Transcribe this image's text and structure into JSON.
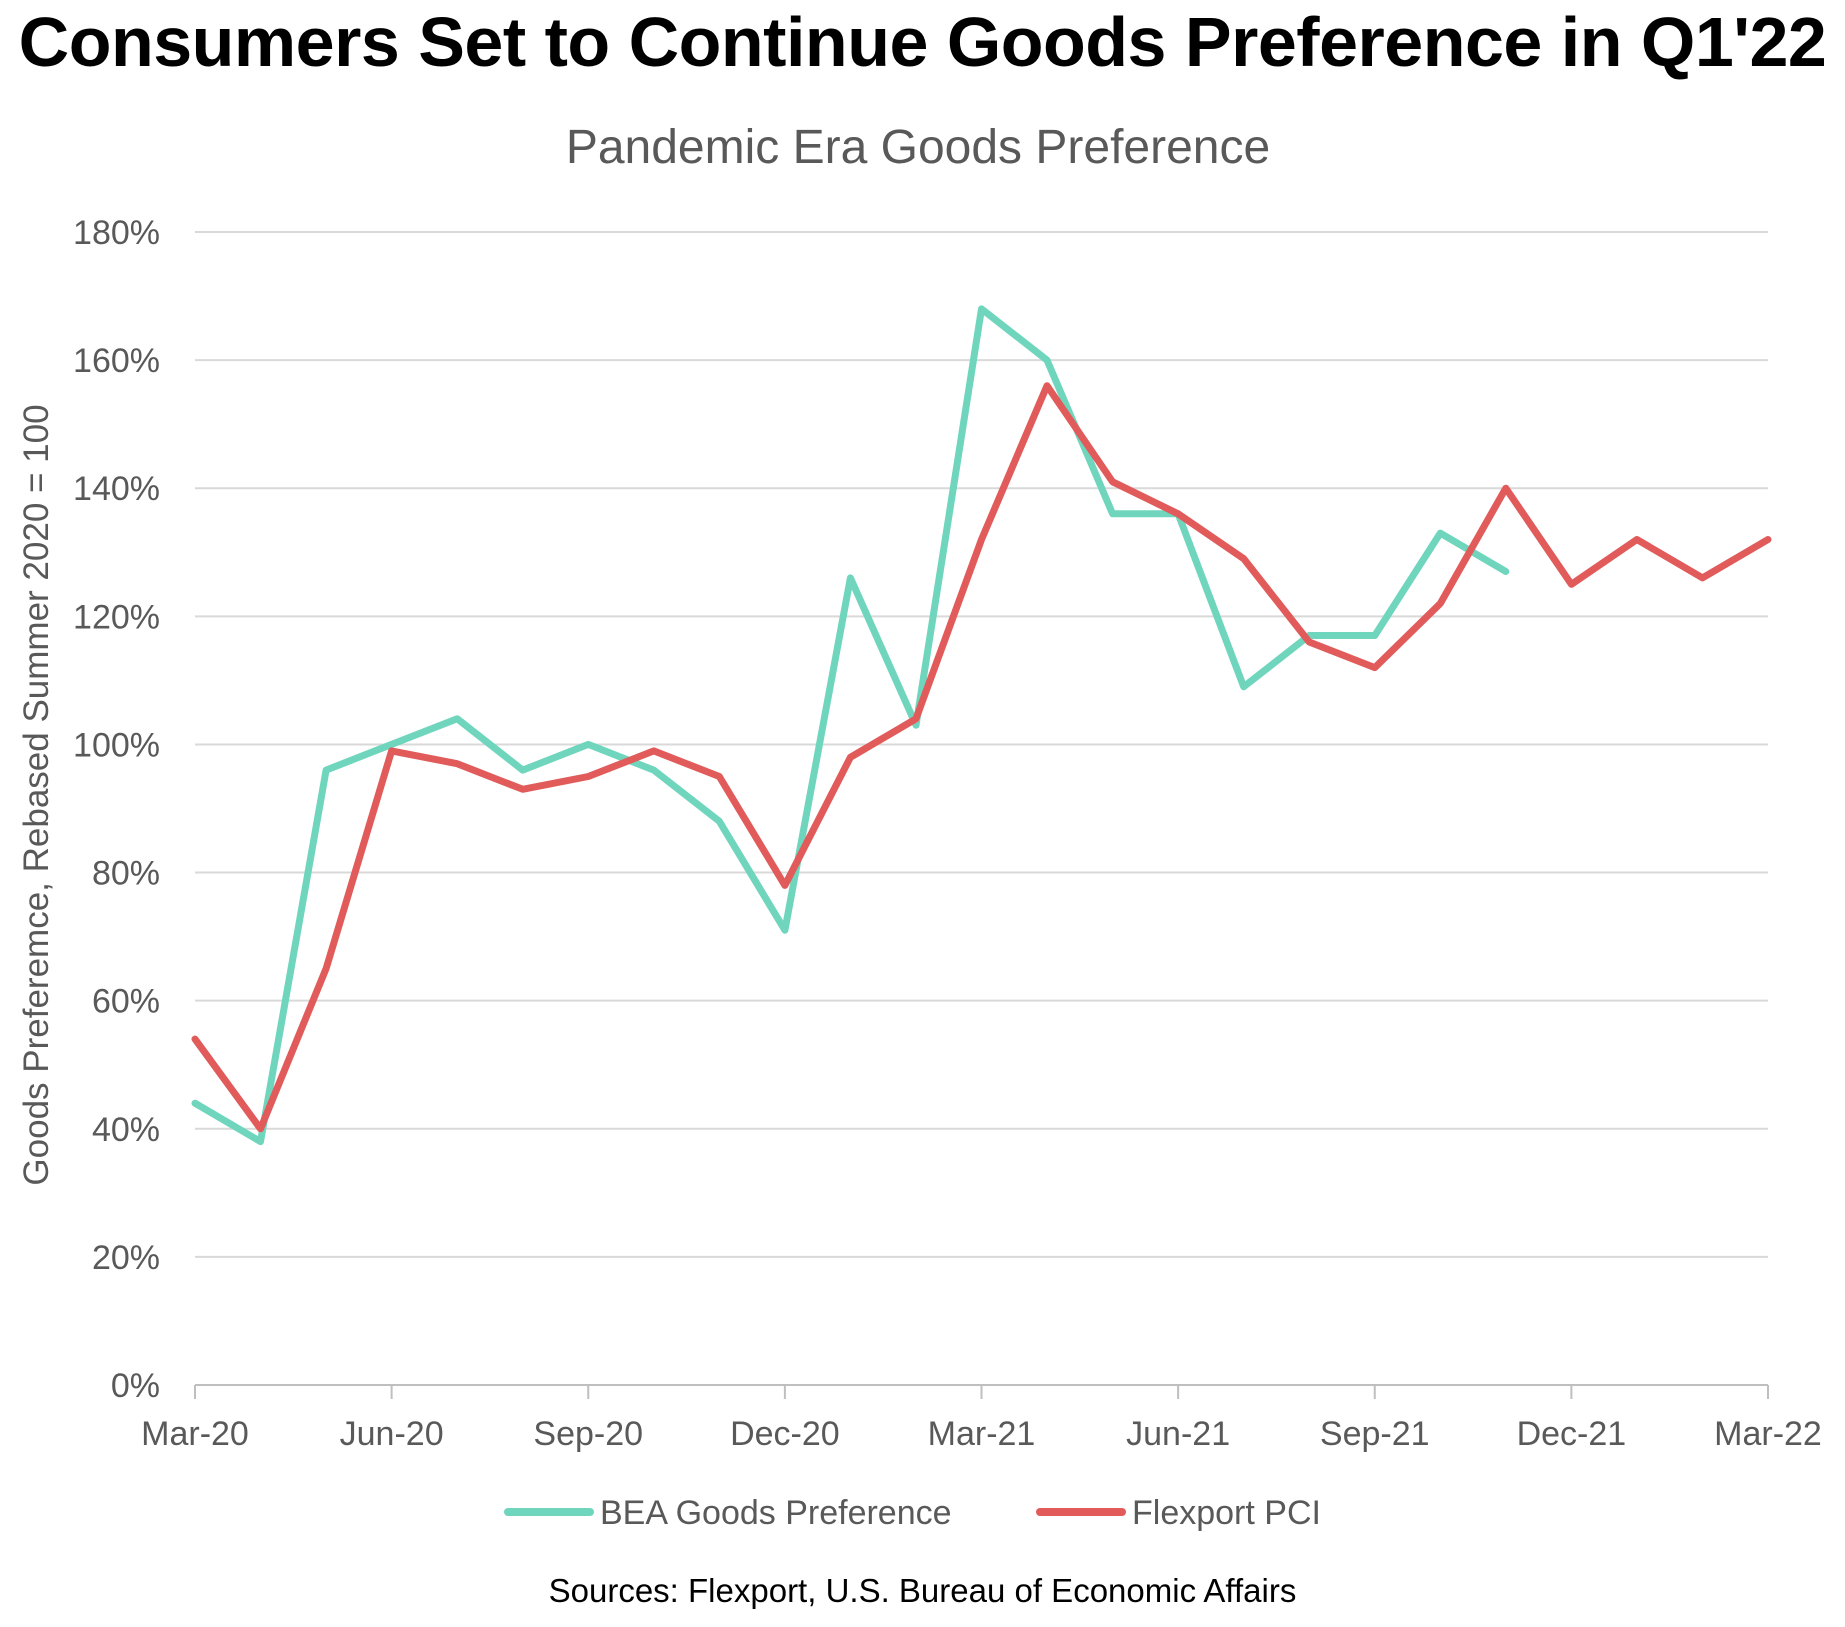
{
  "headline": "Consumers Set to Continue Goods Preference in Q1'22",
  "source": "Sources: Flexport, U.S. Bureau of Economic Affairs",
  "chart_data": {
    "type": "line",
    "title": "Pandemic Era Goods Preference",
    "xlabel": "",
    "ylabel": "Goods Preferemce, Rebased Summer 2020 = 100",
    "ylim": [
      0,
      180
    ],
    "yticks": [
      0,
      20,
      40,
      60,
      80,
      100,
      120,
      140,
      160,
      180
    ],
    "ytick_labels": [
      "0%",
      "20%",
      "40%",
      "60%",
      "80%",
      "100%",
      "120%",
      "140%",
      "160%",
      "180%"
    ],
    "x": [
      "Mar-20",
      "Apr-20",
      "May-20",
      "Jun-20",
      "Jul-20",
      "Aug-20",
      "Sep-20",
      "Oct-20",
      "Nov-20",
      "Dec-20",
      "Jan-21",
      "Feb-21",
      "Mar-21",
      "Apr-21",
      "May-21",
      "Jun-21",
      "Jul-21",
      "Aug-21",
      "Sep-21",
      "Oct-21",
      "Nov-21",
      "Dec-21",
      "Jan-22",
      "Feb-22",
      "Mar-22"
    ],
    "xtick_labels": [
      "Mar-20",
      "Jun-20",
      "Sep-20",
      "Dec-20",
      "Mar-21",
      "Jun-21",
      "Sep-21",
      "Dec-21",
      "Mar-22"
    ],
    "grid": true,
    "legend_position": "bottom",
    "series": [
      {
        "name": "BEA Goods Preference",
        "color": "#6fd6bd",
        "values": [
          44,
          38,
          96,
          100,
          104,
          96,
          100,
          96,
          88,
          71,
          126,
          103,
          168,
          160,
          136,
          136,
          109,
          117,
          117,
          133,
          127,
          null,
          null,
          null,
          null
        ]
      },
      {
        "name": "Flexport PCI",
        "color": "#e15b5b",
        "values": [
          54,
          40,
          65,
          99,
          97,
          93,
          95,
          99,
          95,
          78,
          98,
          104,
          132,
          156,
          141,
          136,
          129,
          116,
          112,
          122,
          140,
          125,
          132,
          126,
          132
        ]
      }
    ]
  }
}
